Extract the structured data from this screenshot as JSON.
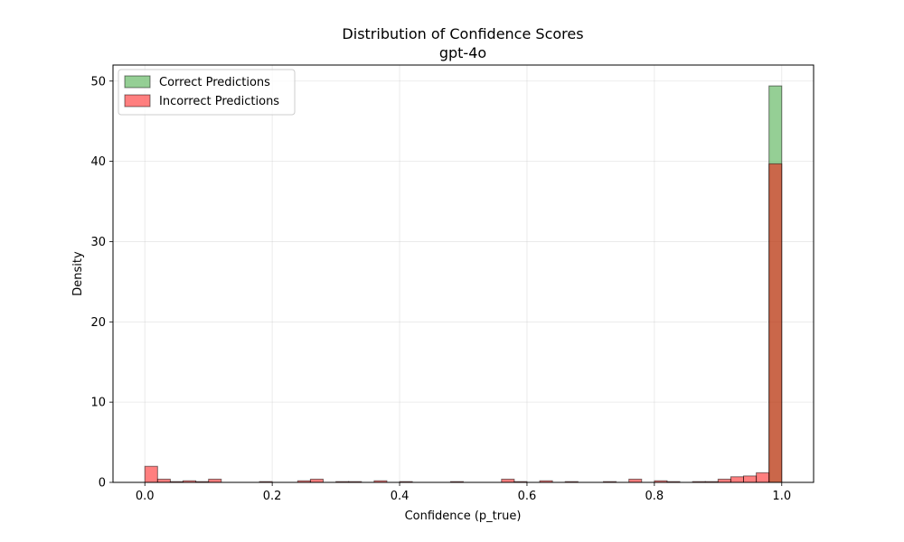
{
  "chart_data": {
    "type": "bar",
    "title": "Distribution of Confidence Scores",
    "subtitle": "gpt-4o",
    "xlabel": "Confidence (p_true)",
    "ylabel": "Density",
    "xlim": [
      -0.05,
      1.05
    ],
    "ylim": [
      0,
      52
    ],
    "xticks": [
      0.0,
      0.2,
      0.4,
      0.6,
      0.8,
      1.0
    ],
    "xtick_labels": [
      "0.0",
      "0.2",
      "0.4",
      "0.6",
      "0.8",
      "1.0"
    ],
    "yticks": [
      0,
      10,
      20,
      30,
      40,
      50
    ],
    "ytick_labels": [
      "0",
      "10",
      "20",
      "30",
      "40",
      "50"
    ],
    "grid": true,
    "legend_position": "top-left",
    "bin_width": 0.02,
    "series": [
      {
        "name": "Correct Predictions",
        "color": "#2ca02c",
        "bins": [
          {
            "x0": 0.98,
            "value": 49.4
          }
        ]
      },
      {
        "name": "Incorrect Predictions",
        "color": "#ff0000",
        "bins": [
          {
            "x0": 0.0,
            "value": 2.0
          },
          {
            "x0": 0.02,
            "value": 0.4
          },
          {
            "x0": 0.04,
            "value": 0.1
          },
          {
            "x0": 0.06,
            "value": 0.2
          },
          {
            "x0": 0.08,
            "value": 0.1
          },
          {
            "x0": 0.1,
            "value": 0.4
          },
          {
            "x0": 0.18,
            "value": 0.1
          },
          {
            "x0": 0.24,
            "value": 0.2
          },
          {
            "x0": 0.26,
            "value": 0.4
          },
          {
            "x0": 0.3,
            "value": 0.1
          },
          {
            "x0": 0.32,
            "value": 0.1
          },
          {
            "x0": 0.36,
            "value": 0.2
          },
          {
            "x0": 0.4,
            "value": 0.1
          },
          {
            "x0": 0.48,
            "value": 0.1
          },
          {
            "x0": 0.56,
            "value": 0.4
          },
          {
            "x0": 0.58,
            "value": 0.1
          },
          {
            "x0": 0.62,
            "value": 0.2
          },
          {
            "x0": 0.66,
            "value": 0.1
          },
          {
            "x0": 0.72,
            "value": 0.1
          },
          {
            "x0": 0.76,
            "value": 0.4
          },
          {
            "x0": 0.8,
            "value": 0.2
          },
          {
            "x0": 0.82,
            "value": 0.1
          },
          {
            "x0": 0.86,
            "value": 0.1
          },
          {
            "x0": 0.88,
            "value": 0.1
          },
          {
            "x0": 0.9,
            "value": 0.4
          },
          {
            "x0": 0.92,
            "value": 0.7
          },
          {
            "x0": 0.94,
            "value": 0.8
          },
          {
            "x0": 0.96,
            "value": 1.2
          },
          {
            "x0": 0.98,
            "value": 39.7
          }
        ]
      }
    ]
  }
}
